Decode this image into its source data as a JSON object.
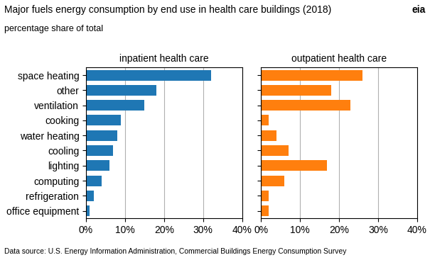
{
  "title": "Major fuels energy consumption by end use in health care buildings (2018)",
  "subtitle": "percentage share of total",
  "annotations": [
    "Data source: U.S. Energy Information Administration, Commercial Buildings Energy Consumption Survey",
    "eia"
  ],
  "chart_data": [
    {
      "type": "bar",
      "orientation": "horizontal",
      "title": "inpatient health care",
      "categories": [
        "space heating",
        "other",
        "ventilation",
        "cooking",
        "water heating",
        "cooling",
        "lighting",
        "computing",
        "refrigeration",
        "office equipment"
      ],
      "values": [
        32,
        18,
        15,
        9,
        8,
        7,
        6,
        4,
        2,
        1
      ],
      "color": "#1f77b4",
      "xlim": [
        0,
        40
      ],
      "xticks": [
        {
          "value": 0,
          "label": "0%"
        },
        {
          "value": 10,
          "label": "10%"
        },
        {
          "value": 20,
          "label": "20%"
        },
        {
          "value": 30,
          "label": "30%"
        },
        {
          "value": 40,
          "label": "40%"
        }
      ],
      "grid": true
    },
    {
      "type": "bar",
      "orientation": "horizontal",
      "title": "outpatient health care",
      "categories": [
        "space heating",
        "other",
        "ventilation",
        "cooking",
        "water heating",
        "cooling",
        "lighting",
        "computing",
        "refrigeration",
        "office equipment"
      ],
      "values": [
        26,
        18,
        23,
        2,
        4,
        7,
        17,
        6,
        2,
        2
      ],
      "color": "#ff7f0e",
      "xlim": [
        0,
        40
      ],
      "xticks": [
        {
          "value": 0,
          "label": "0%"
        },
        {
          "value": 10,
          "label": "10%"
        },
        {
          "value": 20,
          "label": "20%"
        },
        {
          "value": 30,
          "label": "30%"
        },
        {
          "value": 40,
          "label": "40%"
        }
      ],
      "grid": true,
      "tick_labels": "x"
    }
  ]
}
